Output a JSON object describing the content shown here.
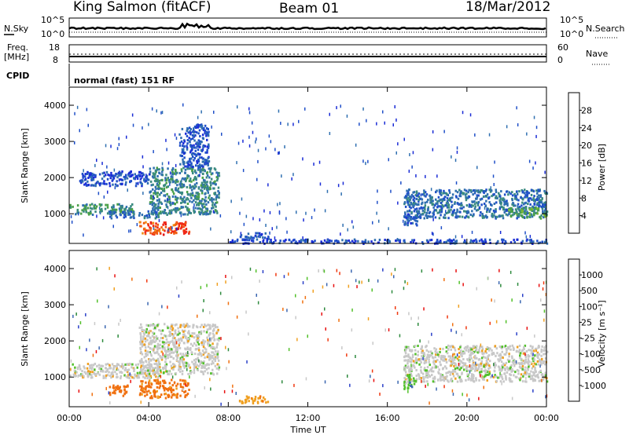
{
  "header": {
    "station": "King Salmon (fitACF)",
    "beam": "Beam 01",
    "date": "18/Mar/2012"
  },
  "aux_panels": {
    "noise": {
      "left_label": "N.Sky",
      "right_label": "N.Search",
      "left_ticks": [
        "10^5",
        "10^0"
      ],
      "right_ticks": [
        "10^5",
        "10^0"
      ]
    },
    "freq": {
      "left_label": "Freq.",
      "left_unit": "[MHz]",
      "right_label": "Nave",
      "left_ticks": [
        "18",
        "8"
      ],
      "right_ticks": [
        "60",
        "0"
      ]
    },
    "cpid": {
      "label": "CPID",
      "value": "normal (fast) 151 RF"
    }
  },
  "axes": {
    "x_ticks": [
      "00:00",
      "04:00",
      "08:00",
      "12:00",
      "16:00",
      "20:00",
      "00:00"
    ],
    "x_label": "Time UT",
    "y_ticks": [
      "1000",
      "2000",
      "3000",
      "4000"
    ],
    "y_label": "Slant Range [km]"
  },
  "colorbars": {
    "power": {
      "label": "Power [dB]",
      "ticks": [
        "4",
        "8",
        "12",
        "16",
        "20",
        "24",
        "28"
      ],
      "colors": [
        "#1a2cd6",
        "#2050c8",
        "#2f6fb0",
        "#3a8a80",
        "#4aa048",
        "#7ab830",
        "#c6c820",
        "#f0b410",
        "#f08a10",
        "#f05a10",
        "#f02818",
        "#e00808"
      ]
    },
    "velocity": {
      "label": "Velocity [m s⁻¹]",
      "ticks": [
        "1000",
        "500",
        "100",
        "25",
        "-25",
        "-100",
        "-500",
        "-1000"
      ],
      "colors": [
        "#2a40c8",
        "#3a66b0",
        "#2e8a3e",
        "#52c02a",
        "#c8c8c8",
        "#c8c8c8",
        "#f0a020",
        "#f07010",
        "#f03810",
        "#e81010"
      ]
    }
  },
  "chart_data": [
    {
      "type": "heatmap",
      "name": "power",
      "xlabel": "Time UT",
      "ylabel": "Slant Range [km]",
      "xlim": [
        0,
        24
      ],
      "ylim": [
        180,
        4500
      ],
      "colorbar": "Power [dB]",
      "blobs": [
        {
          "t0": 0.0,
          "t1": 3.2,
          "r0": 1000,
          "r1": 1300,
          "value": 10
        },
        {
          "t0": 2.0,
          "t1": 4.5,
          "r0": 900,
          "r1": 1100,
          "value": 7
        },
        {
          "t0": 3.5,
          "t1": 6.0,
          "r0": 450,
          "r1": 800,
          "value": 26
        },
        {
          "t0": 4.0,
          "t1": 7.5,
          "r0": 1000,
          "r1": 2300,
          "value": 9
        },
        {
          "t0": 5.5,
          "t1": 7.0,
          "r0": 2300,
          "r1": 3500,
          "value": 5
        },
        {
          "t0": 0.5,
          "t1": 4.0,
          "r0": 1800,
          "r1": 2200,
          "value": 4
        },
        {
          "t0": 8.5,
          "t1": 10.0,
          "r0": 300,
          "r1": 500,
          "value": 5
        },
        {
          "t0": 8.0,
          "t1": 24.0,
          "r0": 200,
          "r1": 320,
          "value": 4
        },
        {
          "t0": 16.8,
          "t1": 24.0,
          "r0": 900,
          "r1": 1700,
          "value": 7
        },
        {
          "t0": 16.8,
          "t1": 17.5,
          "r0": 700,
          "r1": 1100,
          "value": 5
        },
        {
          "t0": 22.0,
          "t1": 24.0,
          "r0": 900,
          "r1": 1200,
          "value": 12
        }
      ]
    },
    {
      "type": "heatmap",
      "name": "velocity",
      "xlabel": "Time UT",
      "ylabel": "Slant Range [km]",
      "xlim": [
        0,
        24
      ],
      "ylim": [
        180,
        4500
      ],
      "colorbar": "Velocity [m s^-1]",
      "blobs": [
        {
          "t0": 0.0,
          "t1": 4.5,
          "r0": 1000,
          "r1": 1400,
          "value": 0
        },
        {
          "t0": 3.5,
          "t1": 7.5,
          "r0": 1100,
          "r1": 2500,
          "value": 0
        },
        {
          "t0": 2.0,
          "t1": 3.0,
          "r0": 500,
          "r1": 800,
          "value": -500
        },
        {
          "t0": 3.5,
          "t1": 6.0,
          "r0": 450,
          "r1": 950,
          "value": -300
        },
        {
          "t0": 8.5,
          "t1": 10.0,
          "r0": 300,
          "r1": 500,
          "value": -200
        },
        {
          "t0": 16.8,
          "t1": 24.0,
          "r0": 900,
          "r1": 1900,
          "value": 0
        },
        {
          "t0": 16.8,
          "t1": 17.4,
          "r0": 700,
          "r1": 1100,
          "value": 200
        }
      ]
    }
  ]
}
